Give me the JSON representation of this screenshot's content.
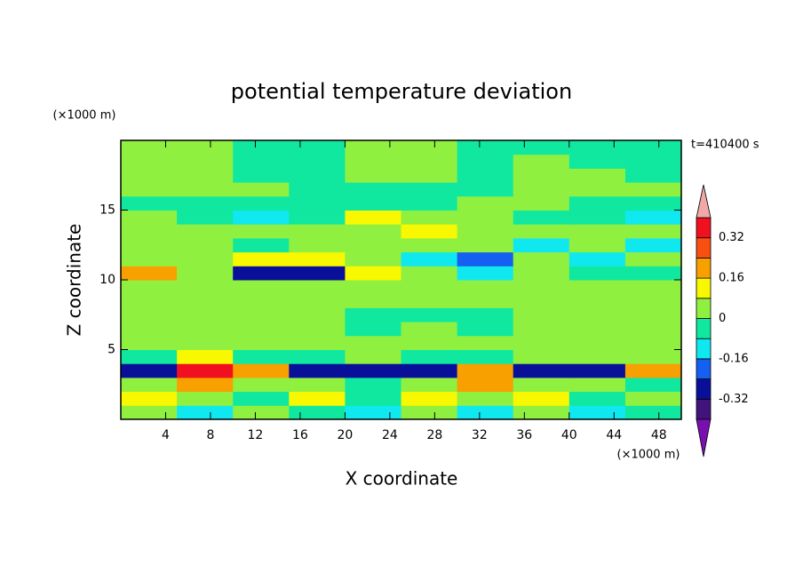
{
  "chart_data": {
    "type": "contour",
    "title": "potential temperature deviation",
    "x_label": "X coordinate",
    "y_label": "Z coordinate",
    "x_unit": "(×1000 m)",
    "y_unit": "(×1000 m)",
    "time_label": "t=410400 s",
    "xlim": [
      0,
      50
    ],
    "ylim": [
      0,
      20
    ],
    "xticks": [
      4,
      8,
      12,
      16,
      20,
      24,
      28,
      32,
      36,
      40,
      44,
      48
    ],
    "yticks": [
      5,
      10,
      15
    ],
    "x_bins": [
      0,
      5,
      10,
      15,
      20,
      25,
      30,
      35,
      40,
      45,
      50
    ],
    "y_bins": [
      0,
      1,
      2,
      3,
      4,
      5,
      6,
      7,
      8,
      9,
      10,
      11,
      12,
      13,
      14,
      15,
      16,
      17,
      18,
      19,
      20
    ],
    "z": [
      [
        0.04,
        -0.12,
        0.04,
        -0.04,
        -0.12,
        0.04,
        -0.12,
        0.04,
        -0.12,
        -0.04
      ],
      [
        0.12,
        0.04,
        -0.04,
        0.12,
        -0.04,
        0.12,
        0.04,
        0.12,
        -0.04,
        0.04
      ],
      [
        0.04,
        0.2,
        0.04,
        0.04,
        -0.04,
        0.04,
        0.2,
        0.04,
        0.04,
        -0.04
      ],
      [
        -0.28,
        0.36,
        0.2,
        -0.28,
        -0.28,
        -0.28,
        0.2,
        -0.28,
        -0.28,
        0.2
      ],
      [
        -0.04,
        0.12,
        -0.04,
        -0.04,
        0.04,
        -0.04,
        -0.04,
        0.04,
        0.04,
        0.04
      ],
      [
        0.04,
        0.04,
        0.04,
        0.04,
        0.04,
        0.04,
        0.04,
        0.04,
        0.04,
        0.04
      ],
      [
        0.04,
        0.04,
        0.04,
        0.04,
        -0.04,
        0.04,
        -0.04,
        0.04,
        0.04,
        0.04
      ],
      [
        0.04,
        0.04,
        0.04,
        0.04,
        -0.04,
        -0.04,
        -0.04,
        0.04,
        0.04,
        0.04
      ],
      [
        0.04,
        0.04,
        0.04,
        0.04,
        0.04,
        0.04,
        0.04,
        0.04,
        0.04,
        0.04
      ],
      [
        0.04,
        0.04,
        0.04,
        0.04,
        0.04,
        0.04,
        0.04,
        0.04,
        0.04,
        0.04
      ],
      [
        0.2,
        0.04,
        -0.28,
        -0.28,
        0.12,
        0.04,
        -0.12,
        0.04,
        -0.04,
        -0.04
      ],
      [
        0.04,
        0.04,
        0.12,
        0.12,
        0.04,
        -0.12,
        -0.2,
        0.04,
        -0.12,
        0.04
      ],
      [
        0.04,
        0.04,
        -0.04,
        0.04,
        0.04,
        0.04,
        0.04,
        -0.12,
        0.04,
        -0.12
      ],
      [
        0.04,
        0.04,
        0.04,
        0.04,
        0.04,
        0.12,
        0.04,
        0.04,
        0.04,
        0.04
      ],
      [
        0.04,
        -0.04,
        -0.12,
        -0.04,
        0.12,
        0.04,
        0.04,
        -0.04,
        -0.04,
        -0.12
      ],
      [
        -0.04,
        -0.04,
        -0.04,
        -0.04,
        -0.04,
        -0.04,
        0.04,
        0.04,
        -0.04,
        -0.04
      ],
      [
        0.04,
        0.04,
        0.04,
        -0.04,
        -0.04,
        -0.04,
        -0.04,
        0.04,
        0.04,
        0.04
      ],
      [
        0.04,
        0.04,
        -0.04,
        -0.04,
        0.04,
        0.04,
        -0.04,
        0.04,
        0.04,
        -0.04
      ],
      [
        0.04,
        0.04,
        -0.04,
        -0.04,
        0.04,
        0.04,
        -0.04,
        0.04,
        -0.04,
        -0.04
      ],
      [
        0.04,
        0.04,
        -0.04,
        -0.04,
        0.04,
        0.04,
        -0.04,
        -0.04,
        -0.04,
        -0.04
      ]
    ],
    "levels": [
      -0.4,
      -0.32,
      -0.24,
      -0.16,
      -0.08,
      0,
      0.08,
      0.16,
      0.24,
      0.32,
      0.4
    ],
    "colors": [
      "#7a0fb0",
      "#40147a",
      "#0a0f9a",
      "#1560f0",
      "#10e8f0",
      "#10e8a0",
      "#90f040",
      "#f8f800",
      "#f8a000",
      "#f85010",
      "#f01020",
      "#f0a8a8"
    ],
    "colorbar_ticks": [
      -0.32,
      -0.16,
      0,
      0.16,
      0.32
    ]
  }
}
